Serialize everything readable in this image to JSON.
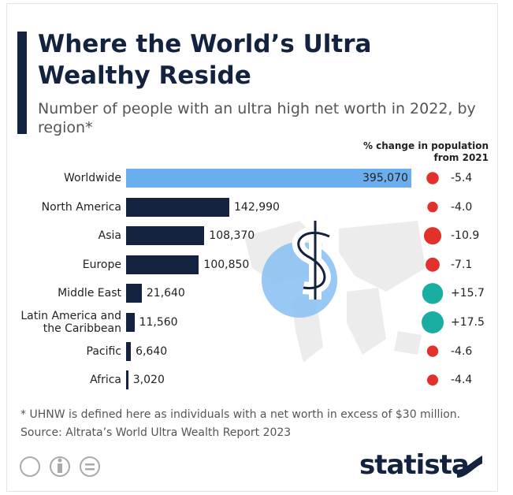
{
  "chart_data": {
    "type": "bar",
    "orientation": "horizontal",
    "title": "Where the World’s Ultra Wealthy Reside",
    "subtitle": "Number of people with an ultra high net worth in 2022, by region*",
    "categories": [
      "Worldwide",
      "North America",
      "Asia",
      "Europe",
      "Middle East",
      "Latin America and the Caribbean",
      "Pacific",
      "Africa"
    ],
    "values": [
      395070,
      142990,
      108370,
      100850,
      21640,
      11560,
      6640,
      3020
    ],
    "value_labels": [
      "395,070",
      "142,990",
      "108,370",
      "100,850",
      "21,640",
      "11,560",
      "6,640",
      "3,020"
    ],
    "colors": [
      "#6aaeee",
      "#13233f",
      "#13233f",
      "#13233f",
      "#13233f",
      "#13233f",
      "#13233f",
      "#13233f"
    ],
    "change": {
      "title": "% change in population from 2021",
      "values": [
        -5.4,
        -4.0,
        -10.9,
        -7.1,
        15.7,
        17.5,
        -4.6,
        -4.4
      ],
      "value_labels": [
        "-5.4",
        "-4.0",
        "-10.9",
        "-7.1",
        "+15.7",
        "+17.5",
        "-4.6",
        "-4.4"
      ],
      "negative_color": "#e2302a",
      "positive_color": "#1aaea2"
    },
    "footnote": "* UHNW is defined here as individuals with a net worth in excess of $30 million.",
    "source": "Source: Altrata’s World Ultra Wealth Report 2023",
    "brand": "statista"
  }
}
